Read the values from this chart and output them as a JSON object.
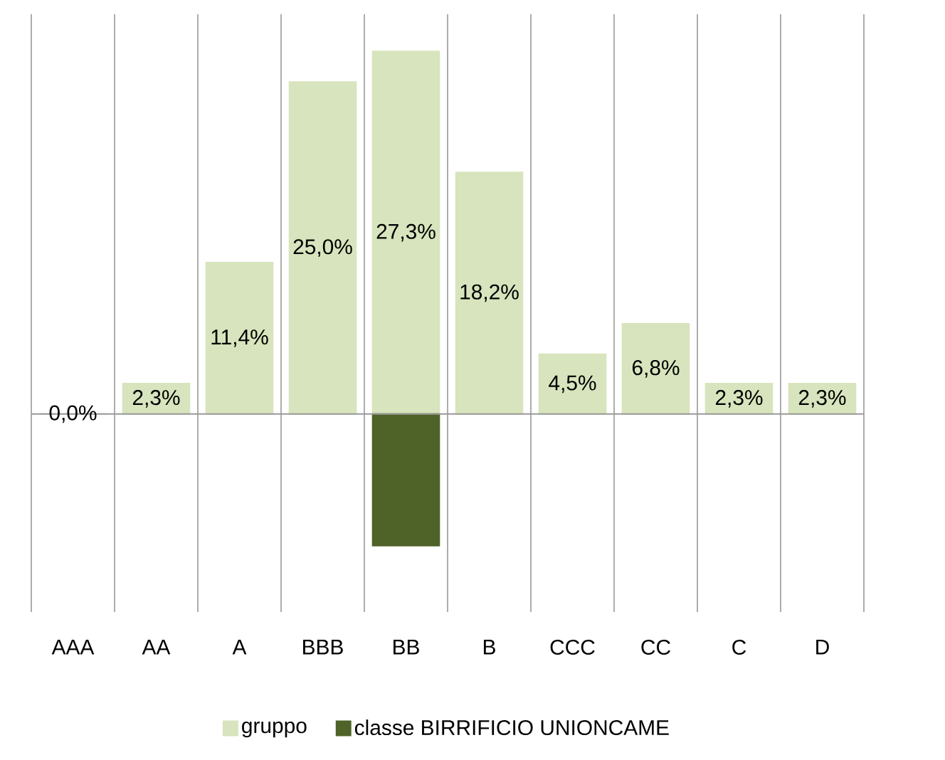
{
  "chart_data": {
    "type": "bar",
    "categories": [
      "AAA",
      "AA",
      "A",
      "BBB",
      "BB",
      "B",
      "CCC",
      "CC",
      "C",
      "D"
    ],
    "series": [
      {
        "name": "gruppo",
        "color": "#d7e4bd",
        "values": [
          0.0,
          2.3,
          11.4,
          25.0,
          27.3,
          18.2,
          4.5,
          6.8,
          2.3,
          2.3
        ],
        "value_labels": [
          "0,0%",
          "2,3%",
          "11,4%",
          "25,0%",
          "27,3%",
          "18,2%",
          "4,5%",
          "6,8%",
          "2,3%",
          "2,3%"
        ]
      },
      {
        "name": "classe BIRRIFICIO UNIONCAME",
        "color": "#4f6228",
        "values": [
          null,
          null,
          null,
          null,
          -9.9,
          null,
          null,
          null,
          null,
          null
        ]
      }
    ],
    "ylim": [
      -14.9,
      30.1
    ],
    "grid": "x",
    "legend": "bottom"
  }
}
